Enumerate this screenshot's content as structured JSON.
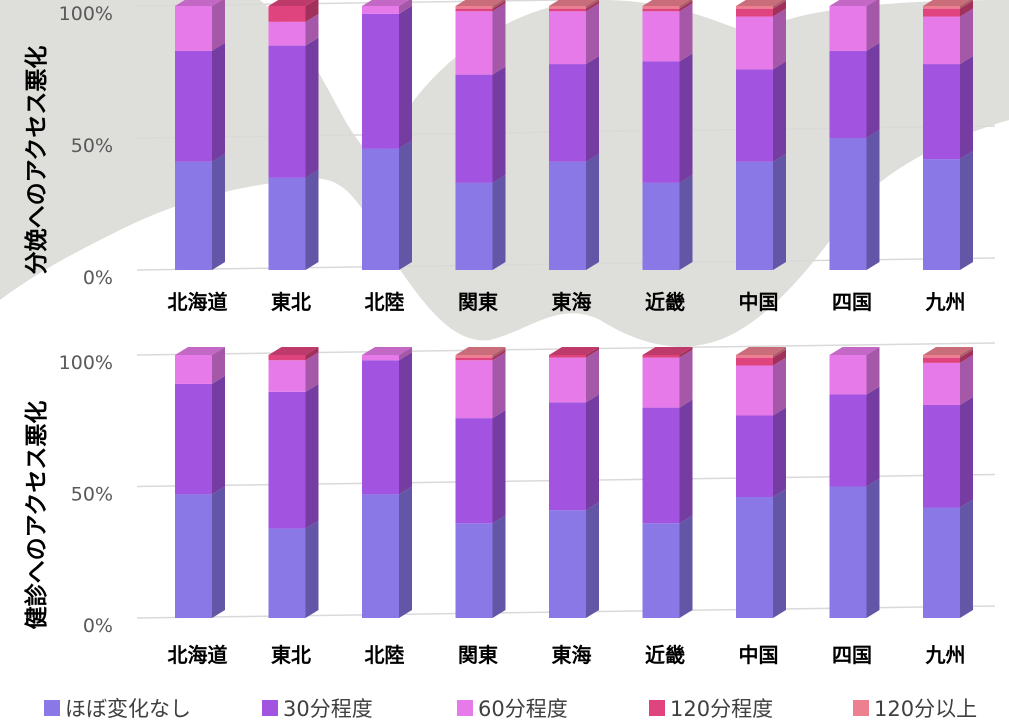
{
  "colors": {
    "background_shape": "#dededa",
    "gridline": "#d9d9d9",
    "series": [
      "#8a78e6",
      "#a254e0",
      "#e57ae8",
      "#e0447e",
      "#ec8090"
    ]
  },
  "legend": {
    "items": [
      "ほぼ変化なし",
      "30分程度",
      "60分程度",
      "120分程度",
      "120分以上"
    ]
  },
  "chart_data": [
    {
      "type": "bar",
      "stacked": true,
      "percent": true,
      "ylabel": "分娩へのアクセス悪化",
      "ylim": [
        0,
        100
      ],
      "yticks": [
        "0%",
        "50%",
        "100%"
      ],
      "grid": true,
      "legend_position": "bottom",
      "categories": [
        "北海道",
        "東北",
        "北陸",
        "関東",
        "東海",
        "近畿",
        "中国",
        "四国",
        "九州"
      ],
      "series": [
        {
          "name": "ほぼ変化なし",
          "values": [
            41,
            35,
            46,
            33,
            41,
            33,
            41,
            50,
            42
          ]
        },
        {
          "name": "30分程度",
          "values": [
            42,
            50,
            51,
            41,
            37,
            46,
            35,
            33,
            36
          ]
        },
        {
          "name": "60分程度",
          "values": [
            17,
            9,
            3,
            24,
            20,
            19,
            20,
            17,
            18
          ]
        },
        {
          "name": "120分程度",
          "values": [
            0,
            6,
            0,
            1,
            1,
            1,
            3,
            0,
            3
          ]
        },
        {
          "name": "120分以上",
          "values": [
            0,
            0,
            0,
            1,
            1,
            1,
            1,
            0,
            1
          ]
        }
      ]
    },
    {
      "type": "bar",
      "stacked": true,
      "percent": true,
      "ylabel": "健診へのアクセス悪化",
      "ylim": [
        0,
        100
      ],
      "yticks": [
        "0%",
        "50%",
        "100%"
      ],
      "grid": true,
      "legend_position": "bottom",
      "categories": [
        "北海道",
        "東北",
        "北陸",
        "関東",
        "東海",
        "近畿",
        "中国",
        "四国",
        "九州"
      ],
      "series": [
        {
          "name": "ほぼ変化なし",
          "values": [
            47,
            34,
            47,
            36,
            41,
            36,
            46,
            50,
            42
          ]
        },
        {
          "name": "30分程度",
          "values": [
            42,
            52,
            51,
            40,
            41,
            44,
            31,
            35,
            39
          ]
        },
        {
          "name": "60分程度",
          "values": [
            11,
            12,
            2,
            22,
            17,
            19,
            19,
            15,
            16
          ]
        },
        {
          "name": "120分程度",
          "values": [
            0,
            2,
            0,
            1,
            1,
            1,
            3,
            0,
            2
          ]
        },
        {
          "name": "120分以上",
          "values": [
            0,
            0,
            0,
            1,
            0,
            0,
            1,
            0,
            1
          ]
        }
      ]
    }
  ]
}
